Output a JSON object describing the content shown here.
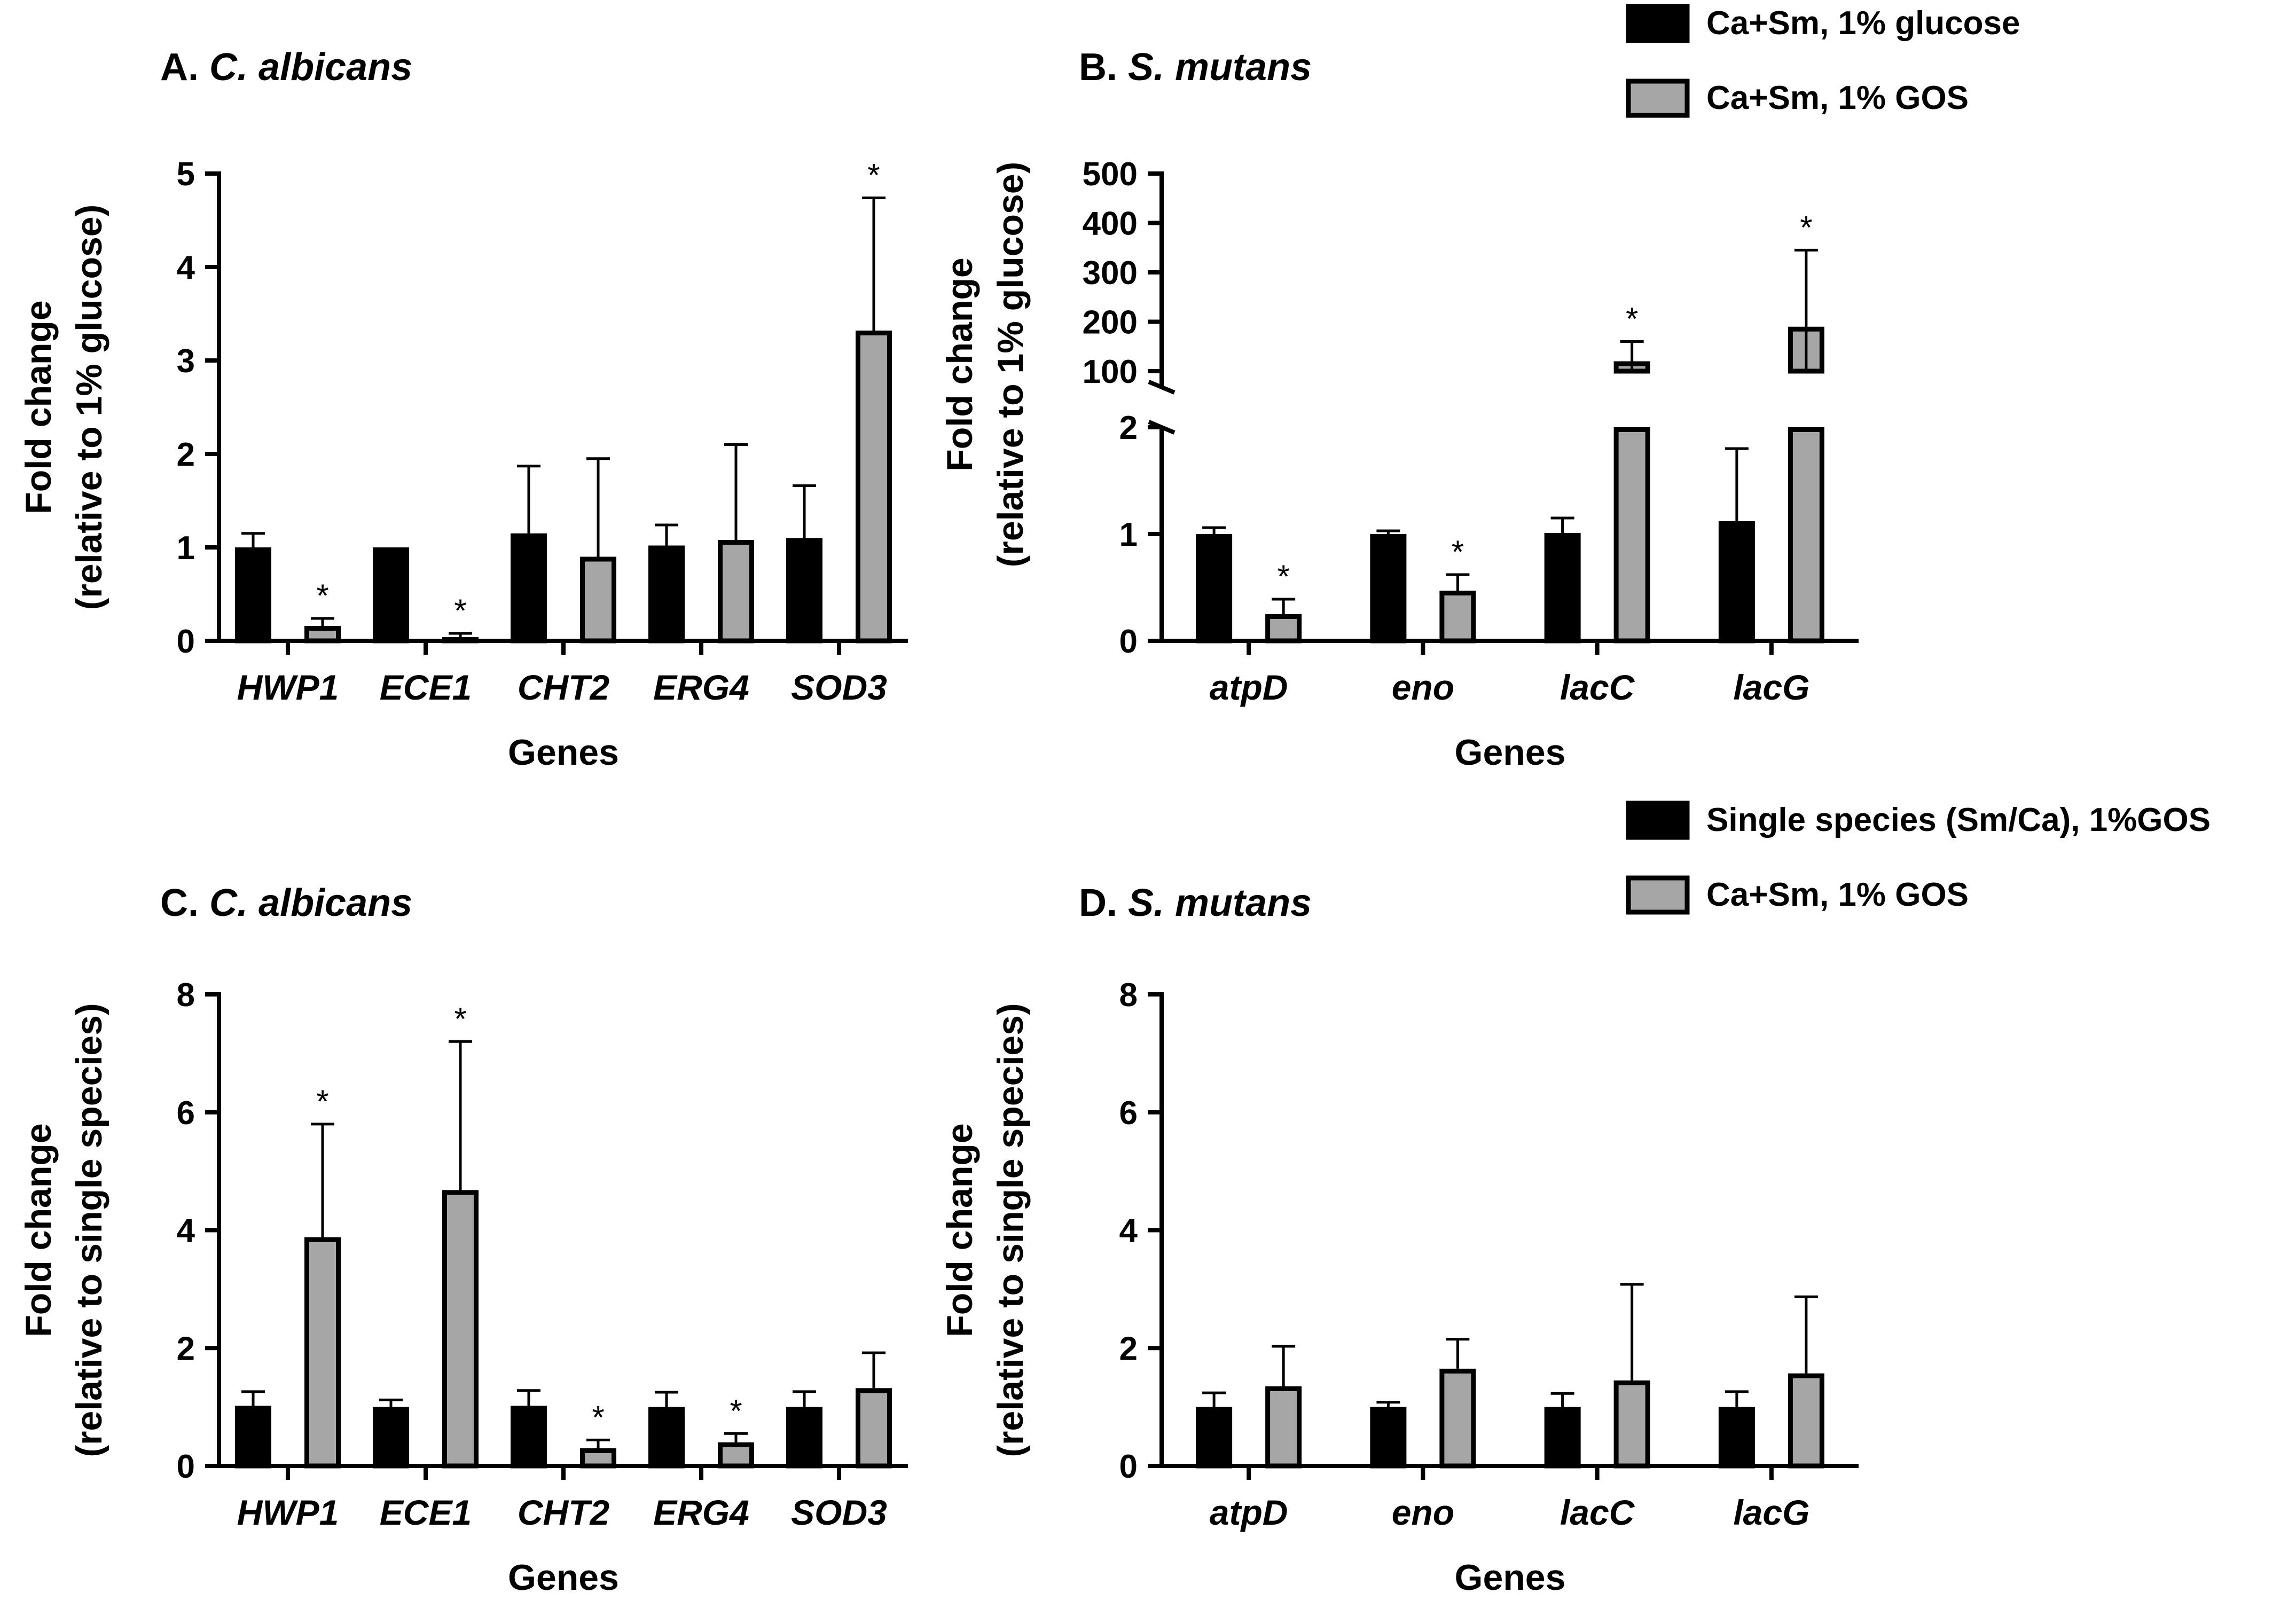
{
  "colors": {
    "group1": "#000000",
    "group2": "#a6a6a6",
    "edge": "#000000"
  },
  "legends": [
    {
      "panels": "A-B",
      "entries": [
        {
          "label": "Ca+Sm, 1% glucose",
          "color": "#000000"
        },
        {
          "label": "Ca+Sm, 1% GOS",
          "color": "#a6a6a6"
        }
      ]
    },
    {
      "panels": "C-D",
      "entries": [
        {
          "label": "Single species (Sm/Ca), 1%GOS",
          "color": "#000000"
        },
        {
          "label": "Ca+Sm, 1% GOS",
          "color": "#a6a6a6"
        }
      ]
    }
  ],
  "chart_data": [
    {
      "id": "A",
      "type": "bar",
      "title_letter": "A.",
      "title_species": "C. albicans",
      "xlabel": "Genes",
      "ylabel_line1": "Fold change",
      "ylabel_line2": "(relative to 1% glucose)",
      "ylim": [
        0,
        5
      ],
      "yticks": [
        0,
        1,
        2,
        3,
        4,
        5
      ],
      "categories": [
        "HWP1",
        "ECE1",
        "CHT2",
        "ERG4",
        "SOD3"
      ],
      "series": [
        {
          "name": "Ca+Sm, 1% glucose",
          "values": [
            1.0,
            1.0,
            1.15,
            1.02,
            1.1
          ],
          "errors": [
            0.15,
            0.0,
            0.72,
            0.22,
            0.56
          ]
        },
        {
          "name": "Ca+Sm, 1% GOS",
          "values": [
            0.16,
            0.04,
            0.9,
            1.08,
            3.32
          ],
          "errors": [
            0.08,
            0.04,
            1.05,
            1.02,
            1.42
          ]
        }
      ],
      "significance": [
        [
          false,
          true
        ],
        [
          false,
          true
        ],
        [
          false,
          false
        ],
        [
          false,
          false
        ],
        [
          false,
          true
        ]
      ]
    },
    {
      "id": "B",
      "type": "bar",
      "title_letter": "B.",
      "title_species": "S. mutans",
      "xlabel": "Genes",
      "ylabel_line1": "Fold change",
      "ylabel_line2": "(relative to 1% glucose)",
      "axis_break": {
        "lower_range": [
          0,
          2
        ],
        "upper_range": [
          100,
          500
        ]
      },
      "yticks_lower": [
        0,
        1,
        2
      ],
      "yticks_upper": [
        100,
        200,
        300,
        400,
        500
      ],
      "categories": [
        "atpD",
        "eno",
        "lacC",
        "lacG"
      ],
      "series": [
        {
          "name": "Ca+Sm, 1% glucose",
          "values": [
            1.0,
            1.0,
            1.01,
            1.12
          ],
          "errors": [
            0.06,
            0.03,
            0.14,
            0.68
          ]
        },
        {
          "name": "Ca+Sm, 1% GOS",
          "values": [
            0.25,
            0.47,
            120,
            190
          ],
          "errors": [
            0.14,
            0.15,
            40,
            155
          ]
        }
      ],
      "significance": [
        [
          false,
          true
        ],
        [
          false,
          true
        ],
        [
          false,
          true
        ],
        [
          false,
          true
        ]
      ]
    },
    {
      "id": "C",
      "type": "bar",
      "title_letter": "C.",
      "title_species": "C. albicans",
      "xlabel": "Genes",
      "ylabel_line1": "Fold change",
      "ylabel_line2": "(relative to single species)",
      "ylim": [
        0,
        8
      ],
      "yticks": [
        0,
        2,
        4,
        6,
        8
      ],
      "categories": [
        "HWP1",
        "ECE1",
        "CHT2",
        "ERG4",
        "SOD3"
      ],
      "series": [
        {
          "name": "Single species (Sm/Ca), 1%GOS",
          "values": [
            1.02,
            1.0,
            1.02,
            1.0,
            1.0
          ],
          "errors": [
            0.24,
            0.12,
            0.26,
            0.25,
            0.26
          ]
        },
        {
          "name": "Ca+Sm, 1% GOS",
          "values": [
            3.88,
            4.68,
            0.3,
            0.4,
            1.32
          ],
          "errors": [
            1.92,
            2.52,
            0.14,
            0.15,
            0.6
          ]
        }
      ],
      "significance": [
        [
          false,
          true
        ],
        [
          false,
          true
        ],
        [
          false,
          true
        ],
        [
          false,
          true
        ],
        [
          false,
          false
        ]
      ]
    },
    {
      "id": "D",
      "type": "bar",
      "title_letter": "D.",
      "title_species": "S. mutans",
      "xlabel": "Genes",
      "ylabel_line1": "Fold change",
      "ylabel_line2": "(relative to single species)",
      "ylim": [
        0,
        8
      ],
      "yticks": [
        0,
        2,
        4,
        6,
        8
      ],
      "categories": [
        "atpD",
        "eno",
        "lacC",
        "lacG"
      ],
      "series": [
        {
          "name": "Single species (Sm/Ca), 1%GOS",
          "values": [
            1.0,
            1.0,
            1.0,
            1.0
          ],
          "errors": [
            0.24,
            0.08,
            0.23,
            0.26
          ]
        },
        {
          "name": "Ca+Sm, 1% GOS",
          "values": [
            1.35,
            1.65,
            1.45,
            1.57
          ],
          "errors": [
            0.68,
            0.5,
            1.63,
            1.3
          ]
        }
      ],
      "significance": [
        [
          false,
          false
        ],
        [
          false,
          false
        ],
        [
          false,
          false
        ],
        [
          false,
          false
        ]
      ]
    }
  ]
}
